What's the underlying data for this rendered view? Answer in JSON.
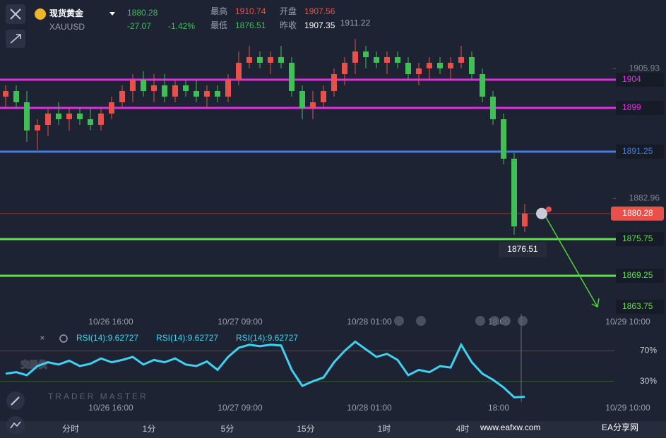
{
  "header": {
    "name": "现货黄金",
    "symbol": "XAUUSD",
    "price": "1880.28",
    "change": "-27.07",
    "change_pct": "-1.42%",
    "stats": [
      {
        "label": "最高",
        "value": "1910.74"
      },
      {
        "label": "开盘",
        "value": "1907.56"
      },
      {
        "label": "最低",
        "value": "1876.51"
      },
      {
        "label": "昨收",
        "value": "1907.35"
      }
    ]
  },
  "chart_data": [
    {
      "type": "candlestick",
      "ylim": [
        1862.5,
        1918.125
      ],
      "yticks": [
        1905.93,
        1882.96
      ],
      "up_color": "#e8514a",
      "down_color": "#3fbf55",
      "candles": [
        [
          1901,
          1903,
          1899,
          1902
        ],
        [
          1902,
          1903,
          1899,
          1900
        ],
        [
          1900,
          1902,
          1893,
          1895
        ],
        [
          1895,
          1897,
          1891.5,
          1896
        ],
        [
          1896,
          1899,
          1894,
          1898
        ],
        [
          1898,
          1900,
          1896,
          1897
        ],
        [
          1897,
          1899,
          1895,
          1898
        ],
        [
          1898,
          1899,
          1896,
          1897
        ],
        [
          1897,
          1899,
          1895,
          1896
        ],
        [
          1896,
          1899,
          1895,
          1898
        ],
        [
          1898,
          1901,
          1897,
          1900
        ],
        [
          1900,
          1903,
          1899,
          1902
        ],
        [
          1902,
          1905,
          1900,
          1904
        ],
        [
          1904,
          1905.5,
          1901,
          1902
        ],
        [
          1902,
          1905,
          1900,
          1903
        ],
        [
          1903,
          1905,
          1900,
          1901
        ],
        [
          1901,
          1904,
          1900,
          1903
        ],
        [
          1903,
          1904,
          1901,
          1902
        ],
        [
          1902,
          1904,
          1900,
          1901
        ],
        [
          1901,
          1903,
          1899,
          1902
        ],
        [
          1902,
          1903,
          1900,
          1901
        ],
        [
          1901,
          1905,
          1900,
          1904
        ],
        [
          1904,
          1909,
          1903,
          1907
        ],
        [
          1907,
          1910,
          1906,
          1908
        ],
        [
          1908,
          1909,
          1906,
          1907
        ],
        [
          1907,
          1909,
          1905,
          1908
        ],
        [
          1908,
          1910,
          1906,
          1907
        ],
        [
          1907,
          1908,
          1901,
          1902
        ],
        [
          1902,
          1903,
          1897,
          1899
        ],
        [
          1899,
          1902,
          1897,
          1900
        ],
        [
          1900,
          1903,
          1899,
          1902
        ],
        [
          1902,
          1906,
          1901,
          1905
        ],
        [
          1905,
          1908,
          1903,
          1907
        ],
        [
          1907,
          1911.22,
          1905,
          1909
        ],
        [
          1909,
          1910,
          1906,
          1908
        ],
        [
          1908,
          1909,
          1906,
          1907
        ],
        [
          1907,
          1909,
          1905,
          1908
        ],
        [
          1908,
          1909,
          1906,
          1907
        ],
        [
          1907,
          1908,
          1904,
          1905
        ],
        [
          1905,
          1907,
          1903,
          1906
        ],
        [
          1906,
          1908,
          1904,
          1907
        ],
        [
          1907,
          1908,
          1905,
          1906
        ],
        [
          1906,
          1908,
          1904,
          1907
        ],
        [
          1907,
          1910,
          1906,
          1908
        ],
        [
          1908,
          1909,
          1904,
          1905
        ],
        [
          1905,
          1906,
          1900,
          1901
        ],
        [
          1901,
          1902,
          1896,
          1897
        ],
        [
          1897,
          1898,
          1889,
          1890
        ],
        [
          1890,
          1891,
          1876.51,
          1878
        ],
        [
          1878,
          1882,
          1877,
          1880.28
        ]
      ],
      "levels": [
        {
          "value": 1904,
          "color": "#e02ee0"
        },
        {
          "value": 1899,
          "color": "#e02ee0"
        },
        {
          "value": 1891.25,
          "color": "#3d7fe6"
        },
        {
          "value": 1875.75,
          "color": "#5ee04a"
        },
        {
          "value": 1869.25,
          "color": "#5ee04a"
        }
      ],
      "target": 1863.75,
      "last": 1880.28,
      "high_label": 1911.22,
      "low_label": 1876.51,
      "x_labels": [
        "10/26 16:00",
        "10/27 09:00",
        "10/28 01:00",
        "18:00",
        "10/29 10:00"
      ]
    },
    {
      "type": "line",
      "legend": [
        "RSI(14):9.62727",
        "RSI(14):9.62727",
        "RSI(14):9.62727"
      ],
      "color": "#3fd2f0",
      "ylim": [
        0,
        100
      ],
      "yticks": [
        {
          "value": 70,
          "label": "70%"
        },
        {
          "value": 30,
          "label": "30%"
        }
      ],
      "values": [
        40,
        42,
        38,
        50,
        55,
        52,
        57,
        50,
        53,
        60,
        55,
        58,
        62,
        52,
        58,
        55,
        60,
        52,
        50,
        56,
        45,
        62,
        74,
        78,
        76,
        78,
        77,
        45,
        24,
        30,
        35,
        55,
        70,
        82,
        72,
        62,
        66,
        58,
        38,
        45,
        42,
        50,
        48,
        78,
        55,
        40,
        32,
        22,
        9,
        9.62727
      ]
    }
  ],
  "tabs": [
    "分时",
    "1分",
    "5分",
    "15分",
    "1时",
    "4时"
  ],
  "watermark": {
    "logo": "交易侠",
    "subtitle": "TRADER MASTER",
    "site": "www.eafxw.com",
    "brand": "EA分享网"
  }
}
